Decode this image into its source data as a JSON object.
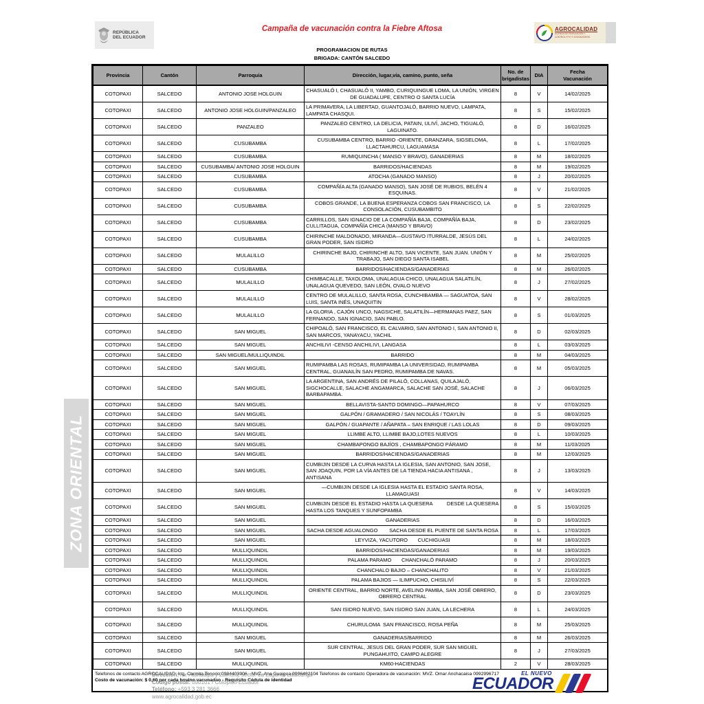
{
  "header": {
    "title": "Campaña de vacunación contra la Fiebre Aftosa",
    "subtitle1": "PROGRAMACION DE RUTAS",
    "subtitle2": "BRIGADA: CANTÓN SALCEDO",
    "left_logo": {
      "line1": "REPÚBLICA",
      "line2": "DEL ECUADOR"
    },
    "right_logo": {
      "name": "AGROCALIDAD",
      "sub1": "AGENCIA DE REGULACIÓN Y",
      "sub2": "CONTROL FITO Y ZOOSANITARIO"
    }
  },
  "side_banner": "ZONA ORIENTAL",
  "table": {
    "columns": [
      "Provincia",
      "Cantón",
      "Parroquia",
      "Dirección, lugar,vía, camino, punto, seña",
      "No. de\nbrigadistas",
      "DIA",
      "Fecha\nVacunación"
    ],
    "rows": [
      {
        "provincia": "COTOPAXI",
        "canton": "SALCEDO",
        "parroquia": "ANTONIO JOSE HOLGUIN",
        "direccion": "CHASUALÓ I, CHASUALÓ II, YAMBO, CURIQUINGUE LOMA, LA UNIÓN, VIRGEN DE GUADALUPE, CENTRO O SANTA LUCÍA",
        "brigadistas": "8",
        "dia": "V",
        "fecha": "14/02/2025",
        "align": "center"
      },
      {
        "provincia": "COTOPAXI",
        "canton": "SALCEDO",
        "parroquia": "ANTONIO JOSE HOLGUIN/PANZALEO",
        "direccion": "LA PRIMAVERA, LA LIBERTAD, GUANTOJALÓ, BARRIO NUEVO, LAMPATA, LAMPATA CHASQUI.",
        "brigadistas": "8",
        "dia": "S",
        "fecha": "15/02/2025",
        "align": "left"
      },
      {
        "provincia": "COTOPAXI",
        "canton": "SALCEDO",
        "parroquia": "PANZALEO",
        "direccion": "PANZALEO CENTRO, LA DELICIA, PATAIN, ULIVÍ, JACHO, TIGUALÓ, LAGUINATO.",
        "brigadistas": "8",
        "dia": "D",
        "fecha": "16/02/2025",
        "align": "center"
      },
      {
        "provincia": "COTOPAXI",
        "canton": "SALCEDO",
        "parroquia": "CUSUBAMBA",
        "direccion": "CUSUBAMBA CENTRO, BARRIO -ORIENTE, GRANZARA, SIGSELOMA, LLACTAHURCU, LAGUAMASA",
        "brigadistas": "8",
        "dia": "L",
        "fecha": "17/02/2025",
        "align": "center"
      },
      {
        "provincia": "COTOPAXI",
        "canton": "SALCEDO",
        "parroquia": "CUSUBAMBA",
        "direccion": "RUMIQUINCHA ( MANSO Y BRAVO), GANADERIAS",
        "brigadistas": "8",
        "dia": "M",
        "fecha": "18/02/2025",
        "align": "center"
      },
      {
        "provincia": "COTOPAXI",
        "canton": "SALCEDO",
        "parroquia": "CUSUBAMBA/ ANTONIO JOSE HOLGUIN",
        "direccion": "BARRIDOS/HACIENDAS",
        "brigadistas": "8",
        "dia": "M",
        "fecha": "19/02/2025",
        "align": "center"
      },
      {
        "provincia": "COTOPAXI",
        "canton": "SALCEDO",
        "parroquia": "CUSUBAMBA",
        "direccion": "ATOCHA (GANADO MANSO)",
        "brigadistas": "8",
        "dia": "J",
        "fecha": "20/02/2025",
        "align": "center"
      },
      {
        "provincia": "COTOPAXI",
        "canton": "SALCEDO",
        "parroquia": "CUSUBAMBA",
        "direccion": "COMPAÑÍA ALTA (GANADO MANSO), SAN JOSÉ DE RUBIOS, BELÉN 4 ESQUINAS.",
        "brigadistas": "8",
        "dia": "V",
        "fecha": "21/02/2025",
        "align": "center"
      },
      {
        "provincia": "COTOPAXI",
        "canton": "SALCEDO",
        "parroquia": "CUSUBAMBA",
        "direccion": "COBOS GRANDE, LA BUENA ESPERANZA COBOS SAN FRANCISCO, LA CONSOLACIÓN, CUSUBAMBITO",
        "brigadistas": "8",
        "dia": "S",
        "fecha": "22/02/2025",
        "align": "center"
      },
      {
        "provincia": "COTOPAXI",
        "canton": "SALCEDO",
        "parroquia": "CUSUBAMBA",
        "direccion": "CARRILLOS, SAN IGNACIO DE LA COMPAÑÍA BAJA, COMPAÑÍA BAJA, CULLITAGUA, COMPAÑÍA CHICA (MANSO Y BRAVO)",
        "brigadistas": "8",
        "dia": "D",
        "fecha": "23/02/2025",
        "align": "left"
      },
      {
        "provincia": "COTOPAXI",
        "canton": "SALCEDO",
        "parroquia": "CUSUBAMBA",
        "direccion": "CHIRINCHE MALDONADO, MIRANDA—GUSTAVO ITURRALDE, JESÚS DEL GRAN PODER, SAN ISIDRO",
        "brigadistas": "8",
        "dia": "L",
        "fecha": "24/02/2025",
        "align": "left"
      },
      {
        "provincia": "COTOPAXI",
        "canton": "SALCEDO",
        "parroquia": "MULALILLO",
        "direccion": "CHIRINCHE BAJO, CHIRINCHE ALTO, SAN VICENTE, SAN JUAN. UNIÓN Y TRABAJO, SAN DIEGO SANTA ISABEL",
        "brigadistas": "8",
        "dia": "M",
        "fecha": "25/02/2025",
        "align": "center"
      },
      {
        "provincia": "COTOPAXI",
        "canton": "SALCEDO",
        "parroquia": "CUSUBAMBA",
        "direccion": "BARRIDOS/HACIENDAS/GANADERIAS",
        "brigadistas": "8",
        "dia": "M",
        "fecha": "26/02/2025",
        "align": "center"
      },
      {
        "provincia": "COTOPAXI",
        "canton": "SALCEDO",
        "parroquia": "MULALILLO",
        "direccion": "CHIMBACALLE, TAXOLOMA, UNALAGUA CHICO, UNALAGUA SALATILÍN, UNALAGUA QUEVEDO, SAN LEÓN, OVALO NUEVO",
        "brigadistas": "8",
        "dia": "J",
        "fecha": "27/02/2025",
        "align": "left"
      },
      {
        "provincia": "COTOPAXI",
        "canton": "SALCEDO",
        "parroquia": "MULALILLO",
        "direccion": "CENTRO DE MULALILLO, SANTA ROSA, CUNCHIBAMBA — SAGUATOA, SAN LUIS, SANTA INÉS, UNAQUITIN",
        "brigadistas": "8",
        "dia": "V",
        "fecha": "28/02/2025",
        "align": "left"
      },
      {
        "provincia": "COTOPAXI",
        "canton": "SALCEDO",
        "parroquia": "MULALILLO",
        "direccion": "LA GLORIA , CAJÓN UNCO, NAGSICHE, SALATILÍN—HERMANAS PAEZ, SAN FERNANDO, SAN IGNACIO, SAN PABLO.",
        "brigadistas": "8",
        "dia": "S",
        "fecha": "01/03/2025",
        "align": "left"
      },
      {
        "provincia": "COTOPAXI",
        "canton": "SALCEDO",
        "parroquia": "SAN MIGUEL",
        "direccion": "CHIPOALÓ, SAN FRANCISCO, EL CALVARIO, SAN ANTONIO I, SAN ANTONIO II, SAN MARCOS, YANAYACU, YACHIL",
        "brigadistas": "8",
        "dia": "D",
        "fecha": "02/03/2025",
        "align": "left"
      },
      {
        "provincia": "COTOPAXI",
        "canton": "SALCEDO",
        "parroquia": "SAN MIGUEL",
        "direccion": "ANCHILIVI -CENSO ANCHILIVI, LANGASA",
        "brigadistas": "8",
        "dia": "L",
        "fecha": "03/03/2025",
        "align": "left"
      },
      {
        "provincia": "COTOPAXI",
        "canton": "SALCEDO",
        "parroquia": "SAN MIGUEL/MULLIQUINDIL",
        "direccion": "BARRIDO",
        "brigadistas": "8",
        "dia": "M",
        "fecha": "04/03/2025",
        "align": "center"
      },
      {
        "provincia": "COTOPAXI",
        "canton": "SALCEDO",
        "parroquia": "SAN MIGUEL",
        "direccion": "RUMIPAMBA LAS ROSAS, RUMIPAMBA LA UNIVERSIDAD, RUMIPAMBA CENTRAL, GUANAILÍN SAN PEDRO, RUMIPAMBA DE NAVAS.",
        "brigadistas": "8",
        "dia": "M",
        "fecha": "05/03/2025",
        "align": "left"
      },
      {
        "provincia": "COTOPAXI",
        "canton": "SALCEDO",
        "parroquia": "SAN MIGUEL",
        "direccion": "LA ARGENTINA, SAN ANDRÉS DE PILALÓ, COLLANAS, QUILAJALÓ, SIGCHOCALLE, SALACHE ANGAMARCA, SALACHE SAN JOSÉ, SALACHE BARBAPAMBA.",
        "brigadistas": "8",
        "dia": "J",
        "fecha": "06/03/2025",
        "align": "left"
      },
      {
        "provincia": "COTOPAXI",
        "canton": "SALCEDO",
        "parroquia": "SAN MIGUEL",
        "direccion": "BELLAVISTA-SANTO DOMINGO—PAPAHURCO",
        "brigadistas": "8",
        "dia": "V",
        "fecha": "07/03/2025",
        "align": "center"
      },
      {
        "provincia": "COTOPAXI",
        "canton": "SALCEDO",
        "parroquia": "SAN MIGUEL",
        "direccion": "GALPÓN / GRAMADERO / SAN NICOLÁS / TOAYLÍN",
        "brigadistas": "8",
        "dia": "S",
        "fecha": "08/03/2025",
        "align": "center"
      },
      {
        "provincia": "COTOPAXI",
        "canton": "SALCEDO",
        "parroquia": "SAN MIGUEL",
        "direccion": "GALPÓN / GUAPANTE / AÑAPATA – SAN ENRIQUE / LAS LOLAS",
        "brigadistas": "8",
        "dia": "D",
        "fecha": "09/03/2025",
        "align": "center"
      },
      {
        "provincia": "COTOPAXI",
        "canton": "SALCEDO",
        "parroquia": "SAN MIGUEL",
        "direccion": "LLIMBE ALTO, LLIMBE BAJO,LOTES NUEVOS",
        "brigadistas": "8",
        "dia": "L",
        "fecha": "10/03/2025",
        "align": "center"
      },
      {
        "provincia": "COTOPAXI",
        "canton": "SALCEDO",
        "parroquia": "SAN MIGUEL",
        "direccion": "CHAMBAPONGO BAJÍOS , CHAMBAPONGO PÁRAMO",
        "brigadistas": "8",
        "dia": "M",
        "fecha": "11/03/2025",
        "align": "center"
      },
      {
        "provincia": "COTOPAXI",
        "canton": "SALCEDO",
        "parroquia": "SAN MIGUEL",
        "direccion": "BARRIDOS/HACIENDAS/GANADERIAS",
        "brigadistas": "8",
        "dia": "M",
        "fecha": "12/03/2025",
        "align": "center"
      },
      {
        "provincia": "COTOPAXI",
        "canton": "SALCEDO",
        "parroquia": "SAN MIGUEL",
        "direccion": "CUMBIJIN DESDE LA CURVA HASTA LA IGLESIA, SAN ANTONIO, SAN JOSE, SAN JOAQUIN, POR LA VÍA ANTES DE LA TIENDA HACIA ANTISANA , ANTISANA",
        "brigadistas": "8",
        "dia": "J",
        "fecha": "13/03/2025",
        "align": "left"
      },
      {
        "provincia": "COTOPAXI",
        "canton": "SALCEDO",
        "parroquia": "SAN MIGUEL",
        "direccion": "—CUMBIJIN DESDE LA IGLESIA HASTA EL ESTADIO SANTA ROSA, LLAMAGUASI",
        "brigadistas": "8",
        "dia": "V",
        "fecha": "14/03/2025",
        "align": "center"
      },
      {
        "provincia": "COTOPAXI",
        "canton": "SALCEDO",
        "parroquia": "SAN MIGUEL",
        "direccion": "CUMBIJIN DESDE EL ESTADIO HASTA LA QUESERA          DESDE LA QUESERA HASTA LOS TANQUES Y SUNFOPAMBA",
        "brigadistas": "8",
        "dia": "S",
        "fecha": "15/03/2025",
        "align": "left"
      },
      {
        "provincia": "COTOPAXI",
        "canton": "SALCEDO",
        "parroquia": "SAN MIGUEL",
        "direccion": "GANADERIAS",
        "brigadistas": "8",
        "dia": "D",
        "fecha": "16/03/2025",
        "align": "center"
      },
      {
        "provincia": "COTOPAXI",
        "canton": "SALCEDO",
        "parroquia": "SAN MIGUEL",
        "direccion": "SACHA DESDE AGUALONGO        SACHA DESDE EL PUENTE DE SANTA ROSA",
        "brigadistas": "8",
        "dia": "L",
        "fecha": "17/03/2025",
        "align": "center"
      },
      {
        "provincia": "COTOPAXI",
        "canton": "SALCEDO",
        "parroquia": "SAN MIGUEL",
        "direccion": "LEYVIZA, YACUTORO       CUCHIGUASI",
        "brigadistas": "8",
        "dia": "M",
        "fecha": "18/03/2025",
        "align": "center"
      },
      {
        "provincia": "COTOPAXI",
        "canton": "SALCEDO",
        "parroquia": "MULLIQUINDIL",
        "direccion": "BARRIDOS/HACIENDAS/GANADERIAS",
        "brigadistas": "8",
        "dia": "M",
        "fecha": "19/03/2025",
        "align": "center"
      },
      {
        "provincia": "COTOPAXI",
        "canton": "SALCEDO",
        "parroquia": "MULLIQUINDIL",
        "direccion": "PALAMA PARAMO       CHANCHALÓ PARAMO",
        "brigadistas": "8",
        "dia": "J",
        "fecha": "20/03/2025",
        "align": "center"
      },
      {
        "provincia": "COTOPAXI",
        "canton": "SALCEDO",
        "parroquia": "MULLIQUINDIL",
        "direccion": "CHANCHALO BAJIO – CHANCHALITO",
        "brigadistas": "8",
        "dia": "V",
        "fecha": "21/03/2025",
        "align": "center"
      },
      {
        "provincia": "COTOPAXI",
        "canton": "SALCEDO",
        "parroquia": "MULLIQUINDIL",
        "direccion": "PALAMA BAJIOS — ILIMPUCHO, CHISILIVÍ",
        "brigadistas": "8",
        "dia": "S",
        "fecha": "22/03/2025",
        "align": "center"
      },
      {
        "provincia": "COTOPAXI",
        "canton": "SALCEDO",
        "parroquia": "MULLIQUINDIL",
        "direccion": "ORIENTE CENTRAL, BARRIO NORTE, AVELINO PAMBA, SAN JOSÉ OBRERO, OBRERO CENTRAL",
        "brigadistas": "8",
        "dia": "D",
        "fecha": "23/03/2025",
        "align": "center"
      },
      {
        "provincia": "COTOPAXI",
        "canton": "SALCEDO",
        "parroquia": "MULLIQUINDIL",
        "direccion": "SAN ISIDRO NUEVO, SAN ISIDRO SAN JUAN, LA LECHERA",
        "brigadistas": "8",
        "dia": "L",
        "fecha": "24/03/2025",
        "align": "center",
        "tall": true
      },
      {
        "provincia": "COTOPAXI",
        "canton": "SALCEDO",
        "parroquia": "MULLIQUINDIL",
        "direccion": "CHURULOMA  SAN FRANCISCO, ROSA PEÑA",
        "brigadistas": "8",
        "dia": "M",
        "fecha": "25/03/2025",
        "align": "center",
        "tall": true
      },
      {
        "provincia": "COTOPAXI",
        "canton": "SALCEDO",
        "parroquia": "SAN MIGUEL",
        "direccion": "GANADERIAS/BARRIDO",
        "brigadistas": "8",
        "dia": "M",
        "fecha": "26/03/2025",
        "align": "center"
      },
      {
        "provincia": "COTOPAXI",
        "canton": "SALCEDO",
        "parroquia": "SAN MIGUEL",
        "direccion": "SUR CENTRAL, JESUS DEL GRAN PODER, SUR SAN MIGUEL       PUNGAHUITO, CAMPO ALEGRE",
        "brigadistas": "8",
        "dia": "J",
        "fecha": "27/03/2025",
        "align": "center"
      },
      {
        "provincia": "COTOPAXI",
        "canton": "SALCEDO",
        "parroquia": "MULLIQUINDIL",
        "direccion": "KM60-HACIENDAS",
        "brigadistas": "2",
        "dia": "V",
        "fecha": "28/03/2025",
        "align": "center"
      }
    ]
  },
  "notes": {
    "line1": "Telefonos de contacto AGROCALIDAD: Ing. Carmita Tenorio 0984403906  -  MVZ. Ana Guaigua 0996482104 Telefonos de contacto Operadora de vacunación:  MVZ. Omar Anchacaisa 0992996717",
    "line2": "Costo de vacunación: $ 0,60 por cada bovino vacunadao - Requisito Cédula de identidad"
  },
  "footer": {
    "address_label": "Dirección:",
    "address": "Av. Atahualpa y Zamora, sector La Laguna, Latacunga",
    "postal_label": "Código postal:",
    "postal": "050101 / Cotopaxi-Ecuador",
    "phone_label": "Teléfono:",
    "phone": "+593 3 281 3666",
    "website": "www.agrocalidad.gob.ec",
    "logo_top": "EL NUEVO",
    "logo_main": "ECUADOR"
  },
  "colors": {
    "title_red": "#e11b22",
    "header_gray": "#a9a9a9",
    "banner_gray": "#d8d8d8",
    "agrocalidad_bg": "#f1ecd9",
    "agrocalidad_red": "#8a2a1a",
    "ecuador_navy": "#1b2f8a",
    "stripe_yellow": "#f7c600",
    "stripe_blue": "#2b3990",
    "stripe_red": "#e8112d",
    "footer_gray": "#8f9494"
  }
}
